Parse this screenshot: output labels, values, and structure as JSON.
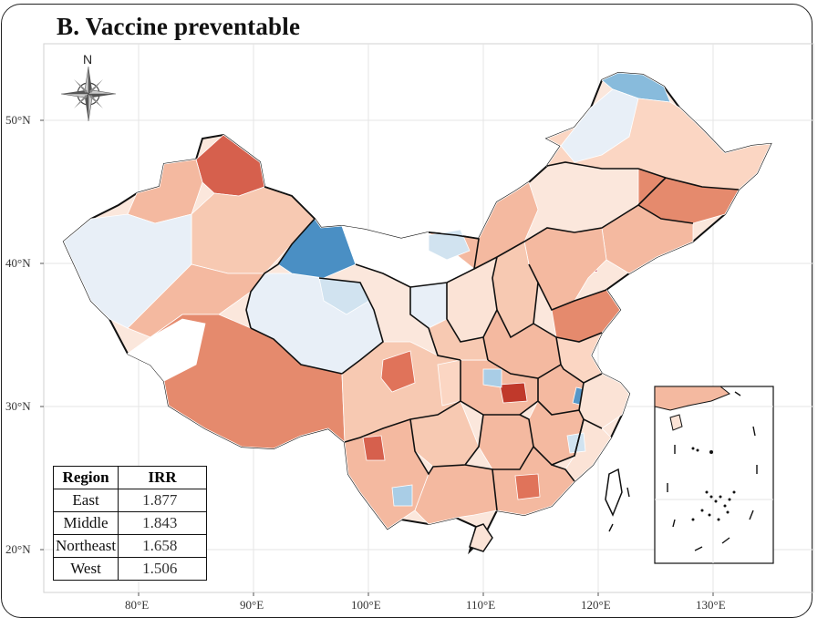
{
  "title": "B. Vaccine preventable",
  "compass_label": "N",
  "axes": {
    "y_ticks": [
      "50°N",
      "40°N",
      "30°N",
      "20°N"
    ],
    "x_ticks": [
      "80°E",
      "90°E",
      "100°E",
      "110°E",
      "120°E",
      "130°E"
    ]
  },
  "legend_table": {
    "headers": [
      "Region",
      "IRR"
    ],
    "rows": [
      {
        "region": "East",
        "irr": "1.877"
      },
      {
        "region": "Middle",
        "irr": "1.843"
      },
      {
        "region": "Northeast",
        "irr": "1.658"
      },
      {
        "region": "West",
        "irr": "1.506"
      }
    ]
  },
  "colors": {
    "strong_increase": "#b2182b",
    "increase": "#e0735a",
    "mild_increase": "#f4b9a0",
    "slight_increase": "#fbe3d6",
    "neutral": "#ffffff",
    "slight_decrease": "#e2ecf5",
    "decrease": "#a9cde6",
    "strong_decrease": "#5797c8"
  }
}
